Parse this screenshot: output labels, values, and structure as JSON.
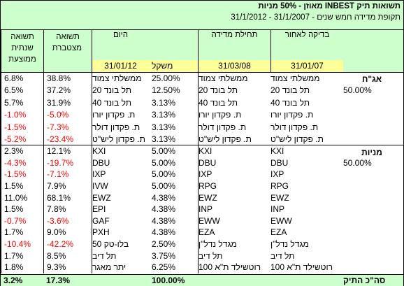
{
  "title": {
    "line1": "תשואות תיק INBEST מאוזן - 50% מניות",
    "line2": "תקופת מדידה חמש שנים - 31/1/2007 - 31/1/2012"
  },
  "headers": {
    "start_label": "בדיקה לאחור",
    "mid_label": "תחילת מדידה",
    "end_label": "היום",
    "cum_label": "תשואה מצטברת",
    "ann_label": "תשואה שנתית ממוצעת",
    "weight_label": "משקל",
    "start_date": "31/01/07",
    "mid_date": "31/03/08",
    "end_date": "31/01/12"
  },
  "bonds_section": {
    "label": "אג\"ח",
    "pct": "50.00%",
    "rows": [
      {
        "start": "ממשלתי צמוד",
        "mid": "ממשלתי צמוד",
        "weight": "25.00%",
        "end": "ממשלתי צמוד",
        "cum": "38.8%",
        "ann": "6.8%"
      },
      {
        "start": "תל בונד 20",
        "mid": "תל בונד 20",
        "weight": "12.50%",
        "end": "תל בונד 20",
        "cum": "37.2%",
        "ann": "6.5%"
      },
      {
        "start": "תל בונד 40",
        "mid": "תל בונד 40",
        "weight": "3.13%",
        "end": "תל בונד 40",
        "cum": "31.9%",
        "ann": "5.7%"
      },
      {
        "start": "ת. פקדון יורו",
        "mid": "ת. פקדון יורו",
        "weight": "3.13%",
        "end": "ת. פקדון יורו",
        "cum": "-5.0%",
        "ann": "-1.0%"
      },
      {
        "start": "ת. פקדון דולר",
        "mid": "ת. פקדון דולר",
        "weight": "3.13%",
        "end": "ת. פקדון דולר",
        "cum": "-7.3%",
        "ann": "-1.5%"
      },
      {
        "start": "ת. פקדון ליש\"ט",
        "mid": "ת. פקדון ליש\"ט",
        "weight": "3.13%",
        "end": "ת. פקדון ליש\"ט",
        "cum": "-23.4%",
        "ann": "-5.2%"
      }
    ]
  },
  "stocks_section": {
    "label": "מניות",
    "pct": "50.00%",
    "rows": [
      {
        "start": "KXI",
        "mid": "KXI",
        "weight": "5.00%",
        "end": "KXI",
        "cum": "12.1%",
        "ann": "2.3%"
      },
      {
        "start": "DBU",
        "mid": "DBU",
        "weight": "5.00%",
        "end": "DBU",
        "cum": "-19.7%",
        "ann": "-4.3%"
      },
      {
        "start": "IXP",
        "mid": "IXP",
        "weight": "5.00%",
        "end": "IXP",
        "cum": "-7.1%",
        "ann": "-1.5%"
      },
      {
        "start": "RPG",
        "mid": "RPG",
        "weight": "5.00%",
        "end": "IVW",
        "cum": "7.9%",
        "ann": "1.5%"
      },
      {
        "start": "EWZ",
        "mid": "EWZ",
        "weight": "4.38%",
        "end": "EWZ",
        "cum": "68.1%",
        "ann": "11.0%"
      },
      {
        "start": "INP",
        "mid": "INP",
        "weight": "4.38%",
        "end": "EPI",
        "cum": "7.8%",
        "ann": "1.5%"
      },
      {
        "start": "EWW",
        "mid": "EWW",
        "weight": "4.38%",
        "end": "GAF",
        "cum": "-3.6%",
        "ann": "-0.7%"
      },
      {
        "start": "EZA",
        "mid": "EZA",
        "weight": "4.38%",
        "end": "PXH",
        "cum": "9.0%",
        "ann": "1.7%"
      },
      {
        "start": "מגדל נדל\"ן",
        "mid": "מגדל נדל\"ן",
        "weight": "2.50%",
        "end": "בלו-טק 50",
        "cum": "-42.2%",
        "ann": "-10.4%"
      },
      {
        "start": "תל דיב",
        "mid": "תל דיב",
        "weight": "3.75%",
        "end": "תל דיב",
        "cum": "8.5%",
        "ann": "1.7%"
      },
      {
        "start": "רוטשילד ת\"א 100",
        "mid": "רוטשילד ת\"א 100",
        "weight": "6.25%",
        "end": "יתר מאגר",
        "cum": "9.3%",
        "ann": "1.8%"
      }
    ]
  },
  "total": {
    "label": "סה\"כ התיק",
    "weight": "100.00%",
    "cum": "17.3%",
    "ann": "3.2%"
  },
  "colors": {
    "header_green": "#ccffcc",
    "highlight_yellow": "#ffff99",
    "negative_red": "#ff0000"
  }
}
